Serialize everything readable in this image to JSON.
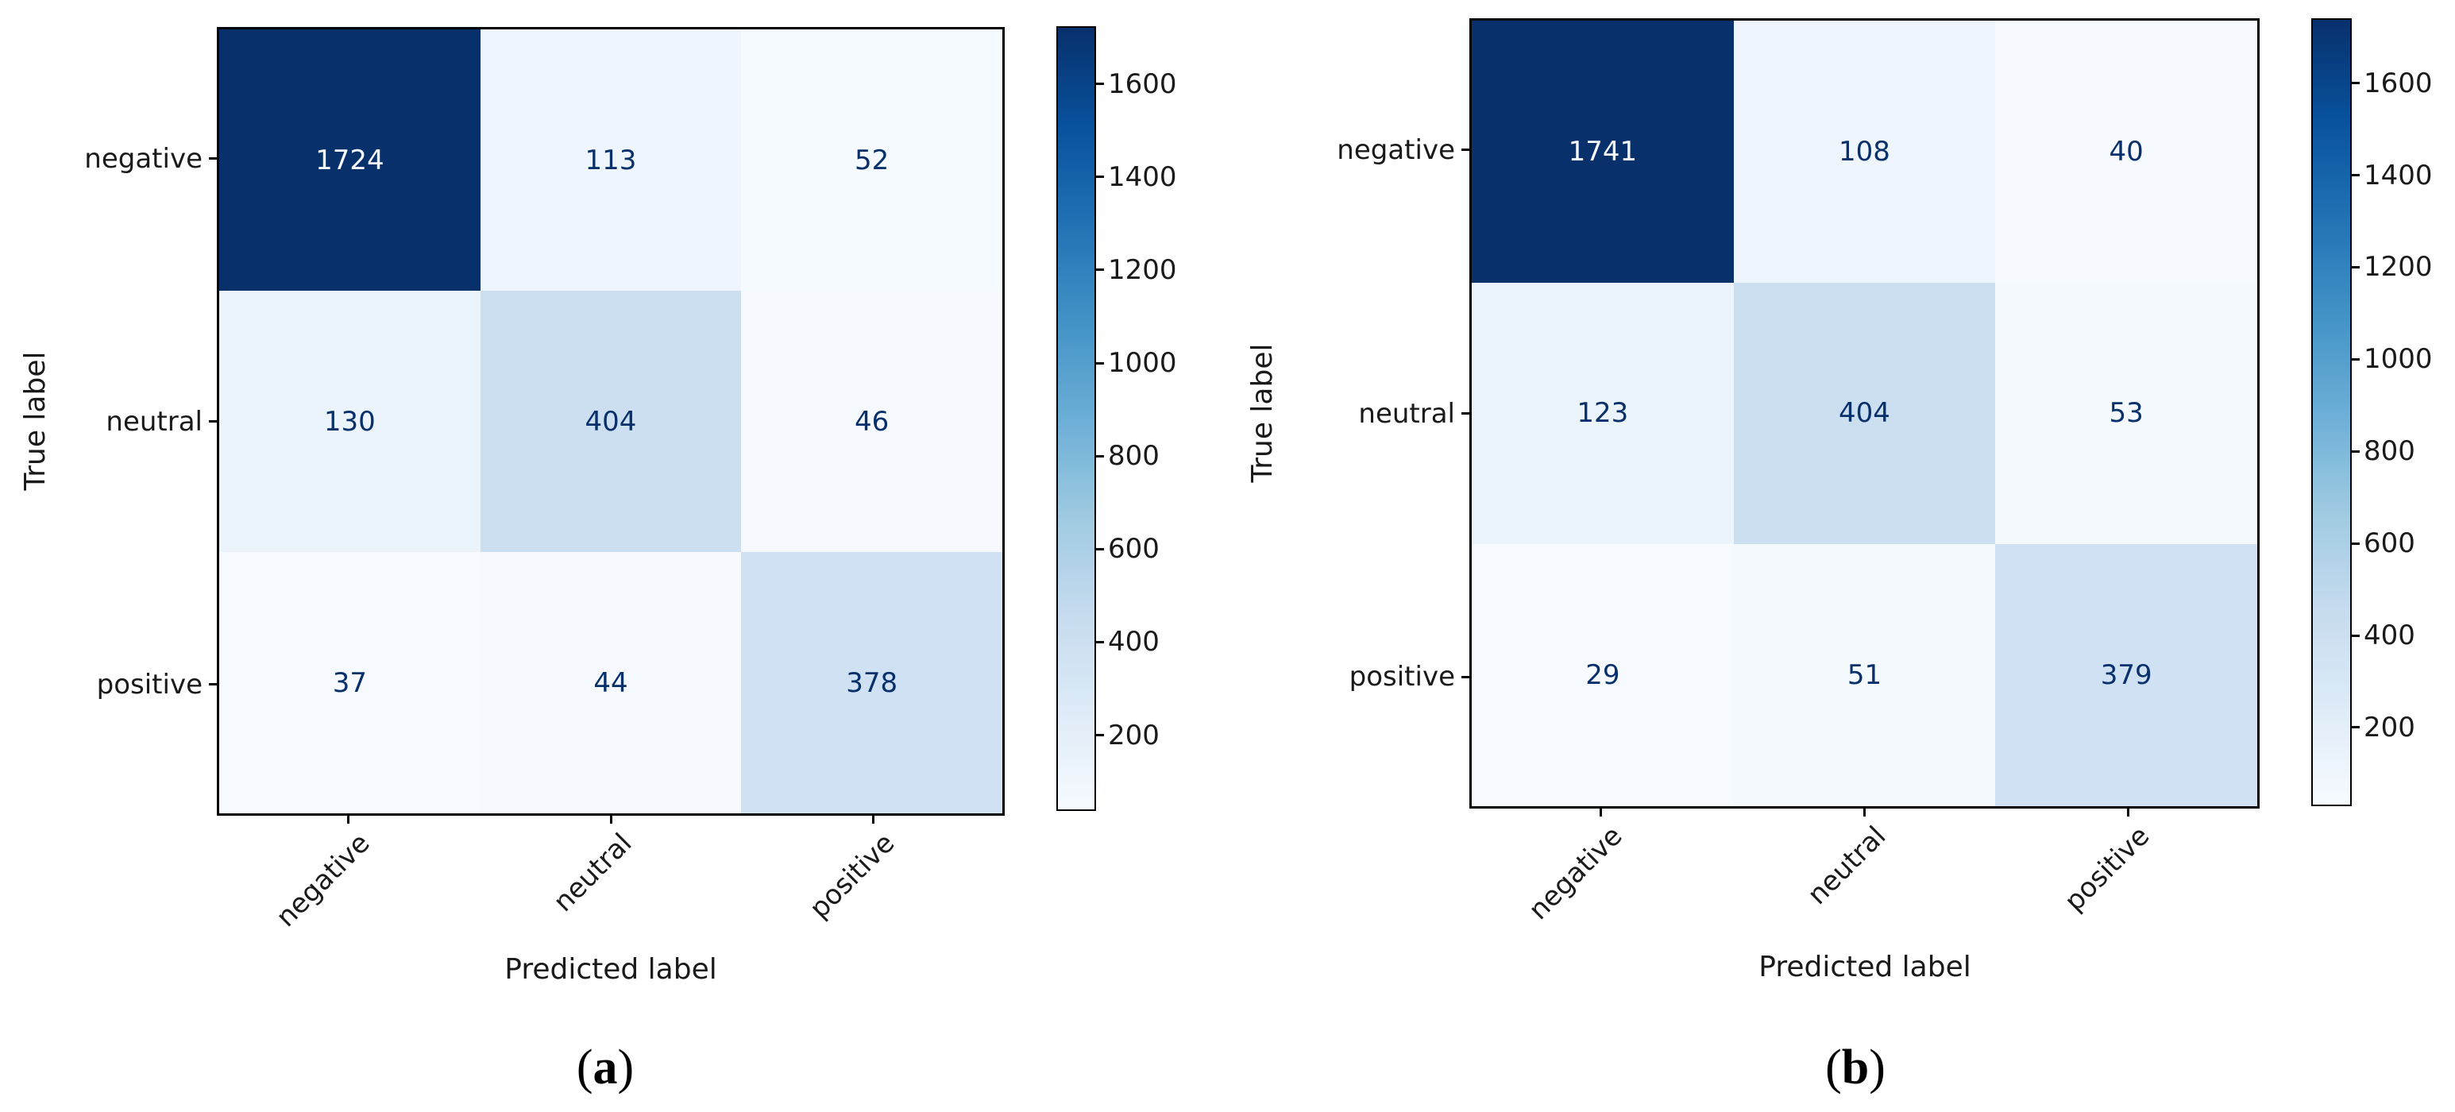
{
  "page": {
    "background": "#ffffff"
  },
  "colors": {
    "colormap_low": "#f7fbff",
    "colormap_high": "#08306b",
    "cell_text_dark": "#08306b",
    "cell_text_light": "#f7fbff",
    "axis_text": "#1a1a1a"
  },
  "chart_data": [
    {
      "type": "heatmap",
      "name": "confusion-matrix-a",
      "panel_letter": "a",
      "panel_label": "(a)",
      "xlabel": "Predicted label",
      "ylabel": "True label",
      "x_categories": [
        "negative",
        "neutral",
        "positive"
      ],
      "y_categories": [
        "negative",
        "neutral",
        "positive"
      ],
      "values": [
        [
          1724,
          113,
          52
        ],
        [
          130,
          404,
          46
        ],
        [
          37,
          44,
          378
        ]
      ],
      "colormap": "Blues",
      "colorbar_ticks": [
        200,
        400,
        600,
        800,
        1000,
        1200,
        1400,
        1600
      ],
      "scale_min": 37,
      "scale_max": 1724,
      "legend_position": "right-colorbar",
      "grid": false
    },
    {
      "type": "heatmap",
      "name": "confusion-matrix-b",
      "panel_letter": "b",
      "panel_label": "(b)",
      "xlabel": "Predicted label",
      "ylabel": "True label",
      "x_categories": [
        "negative",
        "neutral",
        "positive"
      ],
      "y_categories": [
        "negative",
        "neutral",
        "positive"
      ],
      "values": [
        [
          1741,
          108,
          40
        ],
        [
          123,
          404,
          53
        ],
        [
          29,
          51,
          379
        ]
      ],
      "colormap": "Blues",
      "colorbar_ticks": [
        200,
        400,
        600,
        800,
        1000,
        1200,
        1400,
        1600
      ],
      "scale_min": 29,
      "scale_max": 1741,
      "legend_position": "right-colorbar",
      "grid": false
    }
  ]
}
